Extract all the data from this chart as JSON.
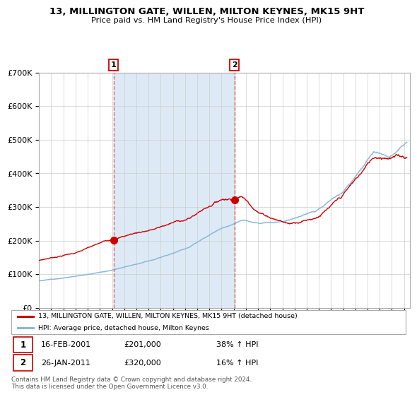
{
  "title": "13, MILLINGTON GATE, WILLEN, MILTON KEYNES, MK15 9HT",
  "subtitle": "Price paid vs. HM Land Registry's House Price Index (HPI)",
  "sale1_date": "2001-02-16",
  "sale1_label": "16-FEB-2001",
  "sale1_price": 201000,
  "sale1_hpi_pct": "38% ↑ HPI",
  "sale2_date": "2011-01-26",
  "sale2_label": "26-JAN-2011",
  "sale2_price": 320000,
  "sale2_hpi_pct": "16% ↑ HPI",
  "legend1": "13, MILLINGTON GATE, WILLEN, MILTON KEYNES, MK15 9HT (detached house)",
  "legend2": "HPI: Average price, detached house, Milton Keynes",
  "footnote": "Contains HM Land Registry data © Crown copyright and database right 2024.\nThis data is licensed under the Open Government Licence v3.0.",
  "hpi_color": "#89b8d8",
  "price_color": "#cc0000",
  "bg_shade": "#ddeaf6",
  "marker_color": "#cc0000",
  "vline_color": "#dd6666",
  "ylim": [
    0,
    700000
  ],
  "yticks": [
    0,
    100000,
    200000,
    300000,
    400000,
    500000,
    600000,
    700000
  ],
  "xstart": 1995,
  "xend": 2025
}
